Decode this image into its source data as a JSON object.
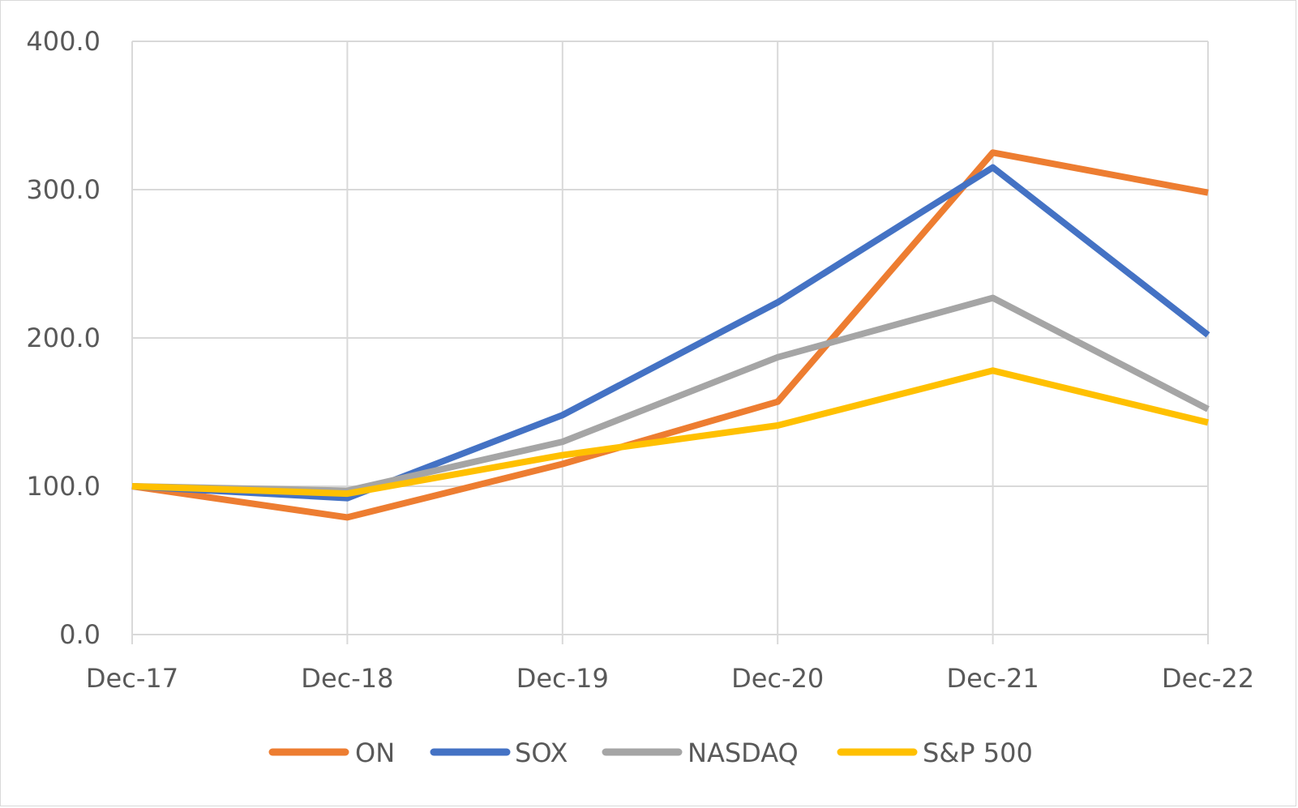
{
  "chart_data": {
    "type": "line",
    "categories": [
      "Dec-17",
      "Dec-18",
      "Dec-19",
      "Dec-20",
      "Dec-21",
      "Dec-22"
    ],
    "y_tick_labels": [
      "0.0",
      "100.0",
      "200.0",
      "300.0",
      "400.0"
    ],
    "ylim": [
      0,
      400
    ],
    "y_step": 100,
    "grid": true,
    "legend_position": "bottom",
    "series": [
      {
        "name": "ON",
        "color": "#ED7D31",
        "values": [
          100.0,
          79.0,
          115.0,
          157.0,
          325.0,
          298.0
        ]
      },
      {
        "name": "SOX",
        "color": "#4472C4",
        "values": [
          100.0,
          92.0,
          148.0,
          224.0,
          315.0,
          202.0
        ]
      },
      {
        "name": "NASDAQ",
        "color": "#A5A5A5",
        "values": [
          100.0,
          97.0,
          130.0,
          187.0,
          227.0,
          152.0
        ]
      },
      {
        "name": "S&P 500",
        "color": "#FFC000",
        "values": [
          100.0,
          95.0,
          121.0,
          141.0,
          178.0,
          143.0
        ]
      }
    ]
  }
}
